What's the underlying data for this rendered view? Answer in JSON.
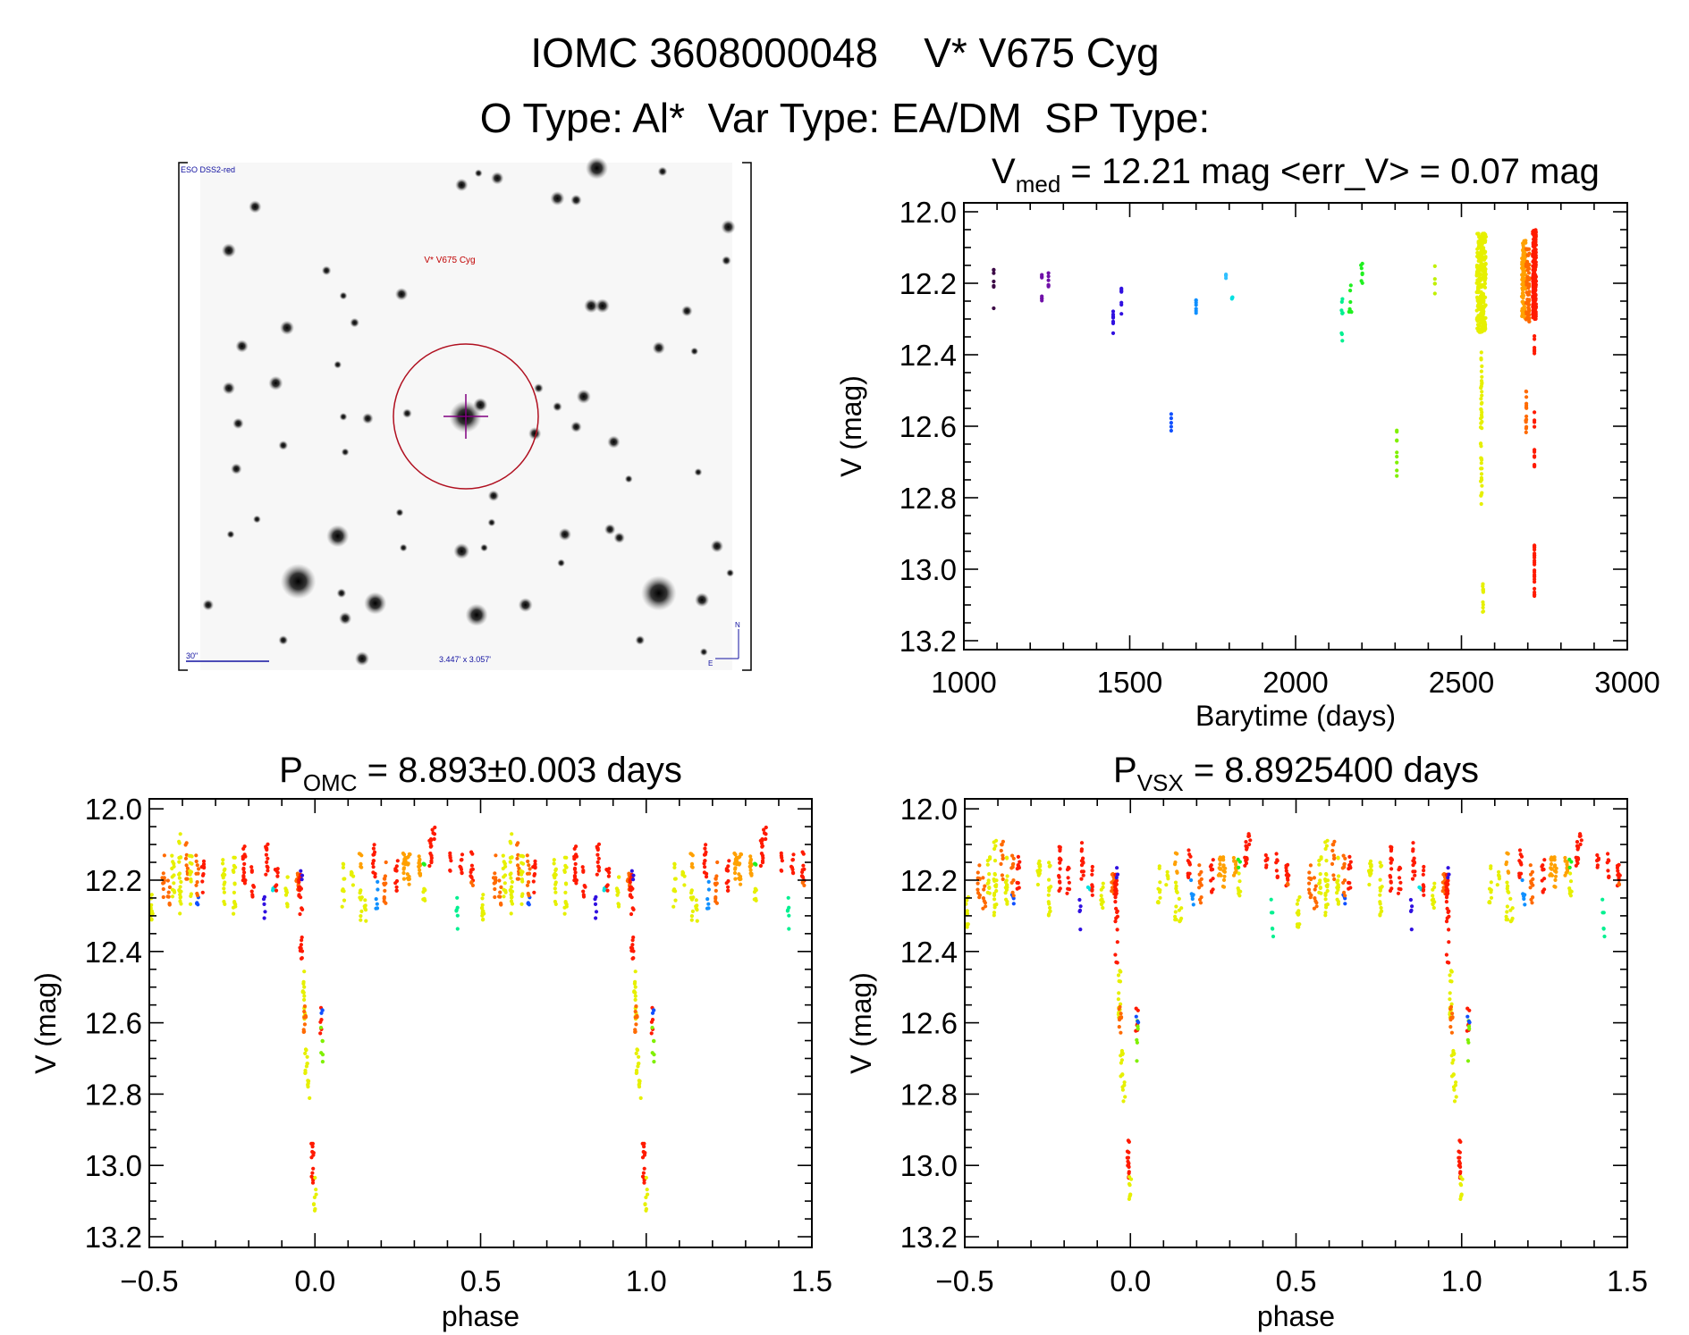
{
  "header": {
    "line1": "IOMC 3608000048    V* V675 Cyg",
    "line2": "O Type: Al*  Var Type: EA/DM  SP Type:"
  },
  "finder": {
    "survey_label": "ESO DSS2-red",
    "target_label": "V* V675 Cyg",
    "scale_label": "30\"",
    "fov_label": "3.447' x 3.057'",
    "north_label": "N",
    "east_label": "E"
  },
  "colors": {
    "dp": "#3c0a46",
    "pu": "#7010a8",
    "bv": "#3010e0",
    "bl": "#1050ff",
    "ab": "#1090ff",
    "sk": "#30c0ff",
    "cy": "#00e0e0",
    "sg": "#00f090",
    "gr": "#20f020",
    "lg": "#80f000",
    "yg": "#c0f000",
    "ye": "#e6f000",
    "or": "#ffa000",
    "do": "#ff6a00",
    "re": "#ff1a00",
    "finder_circle": "#b01020",
    "finder_cross": "#800080",
    "finder_text_red": "#c00000",
    "finder_text_blue": "#1010a0"
  },
  "chart_data": [
    {
      "type": "scatter",
      "title_main": "V",
      "title_sub": "med",
      "title_rest": " = 12.21 mag <err_V> = 0.07 mag",
      "xlabel": "Barytime (days)",
      "ylabel": "V (mag)",
      "xlim": [
        1000,
        3000
      ],
      "ylim": [
        13.225,
        11.975
      ],
      "xticks": [
        "1000",
        "1500",
        "2000",
        "2500",
        "3000"
      ],
      "yticks": [
        "12.0",
        "12.2",
        "12.4",
        "12.6",
        "12.8",
        "13.0",
        "13.2"
      ],
      "clusters_format": [
        "time",
        "mag_min",
        "mag_max",
        "n_points",
        "color",
        "time_spread"
      ],
      "clusters": [
        [
          1090,
          12.16,
          12.22,
          6,
          "dp",
          0
        ],
        [
          1090,
          12.27,
          12.27,
          1,
          "dp",
          0
        ],
        [
          1235,
          12.15,
          12.25,
          7,
          "pu",
          0
        ],
        [
          1255,
          12.15,
          12.21,
          7,
          "pu",
          0
        ],
        [
          1450,
          12.27,
          12.34,
          7,
          "bv",
          0
        ],
        [
          1475,
          12.21,
          12.29,
          7,
          "bv",
          0
        ],
        [
          1625,
          12.55,
          12.62,
          5,
          "bl",
          0
        ],
        [
          1700,
          12.23,
          12.29,
          7,
          "ab",
          0
        ],
        [
          1790,
          12.175,
          12.19,
          4,
          "sk",
          0
        ],
        [
          1810,
          12.22,
          12.25,
          4,
          "cy",
          2
        ],
        [
          2140,
          12.24,
          12.37,
          9,
          "sg",
          2
        ],
        [
          2165,
          12.19,
          12.29,
          9,
          "gr",
          4
        ],
        [
          2200,
          12.14,
          12.21,
          7,
          "gr",
          3
        ],
        [
          2305,
          12.6,
          12.74,
          9,
          "lg",
          0
        ],
        [
          2420,
          12.15,
          12.24,
          5,
          "yg",
          0
        ],
        [
          2560,
          12.06,
          12.34,
          260,
          "ye",
          14
        ],
        [
          2560,
          12.39,
          12.83,
          45,
          "ye",
          2
        ],
        [
          2565,
          13.02,
          13.13,
          12,
          "ye",
          1
        ],
        [
          2688,
          12.08,
          12.3,
          90,
          "or",
          6
        ],
        [
          2700,
          12.1,
          12.31,
          60,
          "do",
          5
        ],
        [
          2695,
          12.5,
          12.63,
          14,
          "do",
          1
        ],
        [
          2720,
          12.05,
          12.3,
          220,
          "re",
          5
        ],
        [
          2720,
          12.34,
          12.4,
          6,
          "re",
          0
        ],
        [
          2720,
          12.54,
          12.72,
          12,
          "re",
          0
        ],
        [
          2720,
          12.93,
          13.08,
          24,
          "re",
          0
        ]
      ]
    },
    {
      "type": "scatter",
      "title_main": "P",
      "title_sub": "OMC",
      "title_rest": " = 8.893±0.003 days",
      "xlabel": "phase",
      "ylabel": "V (mag)",
      "xlim": [
        -0.5,
        1.5
      ],
      "ylim": [
        13.23,
        11.972
      ],
      "xticks": [
        "−0.5",
        "0.0",
        "0.5",
        "1.0",
        "1.5"
      ],
      "yticks": [
        "12.0",
        "12.2",
        "12.4",
        "12.6",
        "12.8",
        "13.0",
        "13.2"
      ],
      "clusters_format": [
        "phase",
        "mag_min",
        "mag_max",
        "n_points",
        "color"
      ],
      "clusters": [
        [
          0.507,
          12.24,
          12.34,
          12,
          "ye"
        ],
        [
          0.543,
          12.13,
          12.25,
          10,
          "do"
        ],
        [
          0.559,
          12.18,
          12.28,
          8,
          "do"
        ],
        [
          0.572,
          12.12,
          12.25,
          12,
          "ye"
        ],
        [
          0.592,
          12.07,
          12.3,
          22,
          "ye"
        ],
        [
          0.612,
          12.09,
          12.2,
          10,
          "do"
        ],
        [
          0.625,
          12.12,
          12.27,
          14,
          "ye"
        ],
        [
          0.645,
          12.24,
          12.28,
          4,
          "bl"
        ],
        [
          0.645,
          12.13,
          12.25,
          10,
          "do"
        ],
        [
          0.662,
          12.13,
          12.24,
          10,
          "re"
        ],
        [
          0.724,
          12.14,
          12.27,
          14,
          "ye"
        ],
        [
          0.757,
          12.13,
          12.3,
          16,
          "ye"
        ],
        [
          0.786,
          12.1,
          12.23,
          16,
          "re"
        ],
        [
          0.812,
          12.16,
          12.26,
          8,
          "re"
        ],
        [
          0.846,
          12.24,
          12.34,
          5,
          "bv"
        ],
        [
          0.855,
          12.09,
          12.2,
          12,
          "re"
        ],
        [
          0.875,
          12.22,
          12.23,
          3,
          "cy"
        ],
        [
          0.884,
          12.16,
          12.25,
          8,
          "re"
        ],
        [
          0.914,
          12.19,
          12.28,
          10,
          "ye"
        ],
        [
          0.947,
          12.18,
          12.24,
          12,
          "do"
        ],
        [
          0.955,
          12.18,
          12.25,
          16,
          "re"
        ],
        [
          0.958,
          12.16,
          12.2,
          3,
          "bv"
        ],
        [
          0.958,
          12.25,
          12.45,
          12,
          "re"
        ],
        [
          0.967,
          12.45,
          12.6,
          14,
          "ye"
        ],
        [
          0.969,
          12.55,
          12.63,
          10,
          "do"
        ],
        [
          0.974,
          12.66,
          12.75,
          10,
          "ye"
        ],
        [
          0.98,
          12.76,
          12.82,
          6,
          "ye"
        ],
        [
          0.993,
          12.93,
          13.05,
          16,
          "re"
        ],
        [
          0.0,
          13.03,
          13.13,
          8,
          "ye"
        ],
        [
          0.02,
          12.55,
          12.63,
          6,
          "re"
        ],
        [
          0.02,
          12.58,
          12.72,
          6,
          "lg"
        ],
        [
          0.02,
          12.56,
          12.6,
          3,
          "bl"
        ],
        [
          0.086,
          12.15,
          12.28,
          10,
          "ye"
        ],
        [
          0.112,
          12.17,
          12.22,
          6,
          "ye"
        ],
        [
          0.138,
          12.11,
          12.18,
          6,
          "or"
        ],
        [
          0.138,
          12.2,
          12.32,
          10,
          "ye"
        ],
        [
          0.151,
          12.25,
          12.32,
          6,
          "ye"
        ],
        [
          0.178,
          12.1,
          12.2,
          12,
          "re"
        ],
        [
          0.187,
          12.2,
          12.28,
          6,
          "ab"
        ],
        [
          0.211,
          12.15,
          12.27,
          12,
          "do"
        ],
        [
          0.246,
          12.14,
          12.24,
          10,
          "re"
        ],
        [
          0.27,
          12.12,
          12.2,
          14,
          "or"
        ],
        [
          0.283,
          12.12,
          12.22,
          12,
          "or"
        ],
        [
          0.316,
          12.13,
          12.19,
          12,
          "or"
        ],
        [
          0.329,
          12.14,
          12.17,
          3,
          "gr"
        ],
        [
          0.329,
          12.18,
          12.26,
          8,
          "ye"
        ],
        [
          0.349,
          12.08,
          12.16,
          12,
          "re"
        ],
        [
          0.358,
          12.05,
          12.1,
          5,
          "re"
        ],
        [
          0.411,
          12.12,
          12.18,
          6,
          "re"
        ],
        [
          0.428,
          12.23,
          12.36,
          6,
          "sg"
        ],
        [
          0.441,
          12.12,
          12.2,
          8,
          "re"
        ],
        [
          0.474,
          12.12,
          12.22,
          10,
          "re"
        ],
        [
          0.474,
          12.2,
          12.22,
          3,
          "do"
        ]
      ]
    },
    {
      "type": "scatter",
      "title_main": "P",
      "title_sub": "VSX",
      "title_rest": " = 8.8925400 days",
      "xlabel": "phase",
      "ylabel": "V (mag)",
      "xlim": [
        -0.5,
        1.5
      ],
      "ylim": [
        13.23,
        11.972
      ],
      "xticks": [
        "−0.5",
        "0.0",
        "0.5",
        "1.0",
        "1.5"
      ],
      "yticks": [
        "12.0",
        "12.2",
        "12.4",
        "12.6",
        "12.8",
        "13.0",
        "13.2"
      ],
      "clusters_format": [
        "phase",
        "mag_min",
        "mag_max",
        "n_points",
        "color"
      ],
      "clusters": [
        [
          0.507,
          12.24,
          12.34,
          12,
          "ye"
        ],
        [
          0.543,
          12.13,
          12.25,
          10,
          "do"
        ],
        [
          0.559,
          12.18,
          12.28,
          8,
          "do"
        ],
        [
          0.572,
          12.12,
          12.25,
          12,
          "ye"
        ],
        [
          0.592,
          12.07,
          12.3,
          22,
          "ye"
        ],
        [
          0.612,
          12.09,
          12.2,
          10,
          "do"
        ],
        [
          0.625,
          12.12,
          12.27,
          14,
          "ye"
        ],
        [
          0.645,
          12.24,
          12.28,
          4,
          "bl"
        ],
        [
          0.645,
          12.13,
          12.25,
          10,
          "do"
        ],
        [
          0.662,
          12.13,
          12.24,
          10,
          "re"
        ],
        [
          0.724,
          12.14,
          12.27,
          14,
          "ye"
        ],
        [
          0.757,
          12.13,
          12.3,
          16,
          "ye"
        ],
        [
          0.786,
          12.1,
          12.23,
          16,
          "re"
        ],
        [
          0.812,
          12.16,
          12.26,
          8,
          "re"
        ],
        [
          0.846,
          12.24,
          12.34,
          5,
          "bv"
        ],
        [
          0.855,
          12.09,
          12.2,
          12,
          "re"
        ],
        [
          0.875,
          12.22,
          12.23,
          3,
          "cy"
        ],
        [
          0.884,
          12.16,
          12.25,
          8,
          "re"
        ],
        [
          0.914,
          12.19,
          12.28,
          10,
          "ye"
        ],
        [
          0.947,
          12.18,
          12.24,
          12,
          "do"
        ],
        [
          0.955,
          12.18,
          12.25,
          16,
          "re"
        ],
        [
          0.958,
          12.16,
          12.2,
          3,
          "bv"
        ],
        [
          0.958,
          12.25,
          12.45,
          12,
          "re"
        ],
        [
          0.967,
          12.45,
          12.6,
          14,
          "ye"
        ],
        [
          0.969,
          12.55,
          12.63,
          10,
          "do"
        ],
        [
          0.974,
          12.66,
          12.75,
          10,
          "ye"
        ],
        [
          0.98,
          12.76,
          12.82,
          6,
          "ye"
        ],
        [
          0.993,
          12.93,
          13.05,
          16,
          "re"
        ],
        [
          0.0,
          13.03,
          13.13,
          8,
          "ye"
        ],
        [
          0.02,
          12.55,
          12.63,
          6,
          "re"
        ],
        [
          0.02,
          12.58,
          12.72,
          6,
          "lg"
        ],
        [
          0.02,
          12.56,
          12.6,
          3,
          "bl"
        ],
        [
          0.086,
          12.15,
          12.28,
          10,
          "ye"
        ],
        [
          0.112,
          12.17,
          12.22,
          6,
          "ye"
        ],
        [
          0.138,
          12.11,
          12.18,
          6,
          "or"
        ],
        [
          0.138,
          12.2,
          12.32,
          10,
          "ye"
        ],
        [
          0.151,
          12.25,
          12.32,
          6,
          "ye"
        ],
        [
          0.178,
          12.1,
          12.2,
          12,
          "re"
        ],
        [
          0.187,
          12.2,
          12.28,
          6,
          "ab"
        ],
        [
          0.211,
          12.15,
          12.27,
          12,
          "do"
        ],
        [
          0.246,
          12.14,
          12.24,
          10,
          "re"
        ],
        [
          0.27,
          12.12,
          12.2,
          14,
          "or"
        ],
        [
          0.283,
          12.12,
          12.22,
          12,
          "or"
        ],
        [
          0.316,
          12.13,
          12.19,
          12,
          "or"
        ],
        [
          0.329,
          12.14,
          12.17,
          3,
          "gr"
        ],
        [
          0.329,
          12.18,
          12.26,
          8,
          "ye"
        ],
        [
          0.349,
          12.08,
          12.16,
          12,
          "re"
        ],
        [
          0.358,
          12.05,
          12.1,
          5,
          "re"
        ],
        [
          0.411,
          12.12,
          12.18,
          6,
          "re"
        ],
        [
          0.428,
          12.23,
          12.36,
          6,
          "sg"
        ],
        [
          0.441,
          12.12,
          12.2,
          8,
          "re"
        ],
        [
          0.474,
          12.12,
          12.22,
          10,
          "re"
        ],
        [
          0.474,
          12.2,
          12.22,
          3,
          "do"
        ]
      ]
    }
  ]
}
